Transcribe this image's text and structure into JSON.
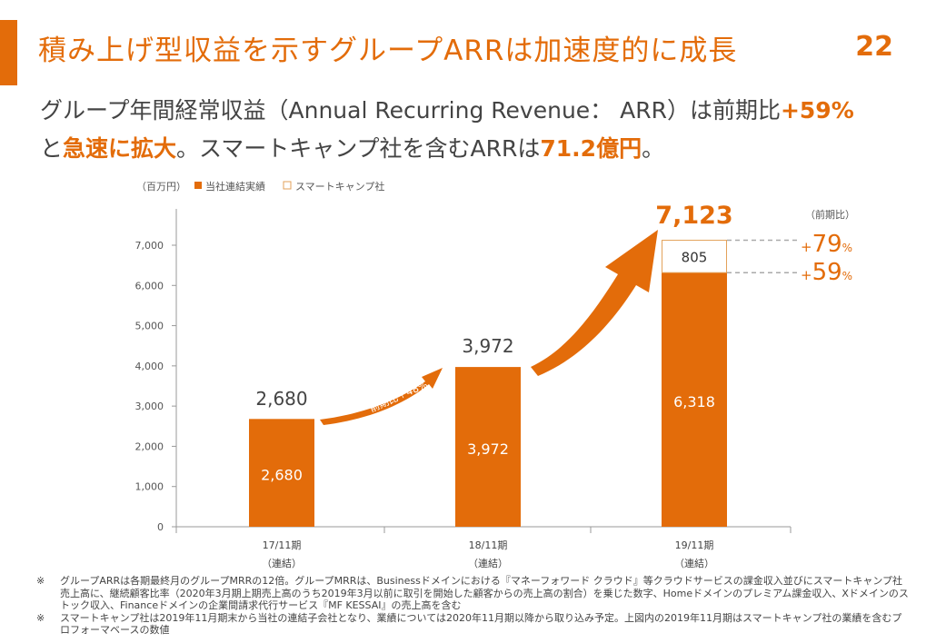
{
  "slide": {
    "title": "積み上げ型収益を示すグループARRは加速度的に成長",
    "page_number": "22",
    "subtitle_line1_a": "グループ年間経常収益（Annual Recurring Revenue： ARR）は前期比",
    "subtitle_line1_b": "+59%",
    "subtitle_line2_a": "と",
    "subtitle_line2_b": "急速に拡大",
    "subtitle_line2_c": "。スマートキャンプ社を含むARRは",
    "subtitle_line2_d": "71.2億円",
    "subtitle_line2_e": "。"
  },
  "colors": {
    "accent": "#e36c0a",
    "stack_border": "#e3a25a",
    "dashed": "#aaaaaa"
  },
  "chart_data": {
    "type": "bar",
    "unit_label": "（百万円）",
    "legend": [
      {
        "name": "当社連結実績",
        "style": "filled"
      },
      {
        "name": "スマートキャンプ社",
        "style": "outline"
      }
    ],
    "categories": [
      "17/11期",
      "18/11期",
      "19/11期"
    ],
    "category_sublabels": [
      "（連結）",
      "（連結）",
      "（連結）"
    ],
    "series": [
      {
        "name": "当社連結実績",
        "values": [
          2680,
          3972,
          6318
        ]
      },
      {
        "name": "スマートキャンプ社",
        "values": [
          0,
          0,
          805
        ]
      }
    ],
    "totals": [
      "2,680",
      "3,972",
      "7,123"
    ],
    "bar_labels": [
      "2,680",
      "3,972",
      "6,318"
    ],
    "stack_label": "805",
    "ylim": [
      0,
      7500
    ],
    "yticks": [
      0,
      1000,
      2000,
      3000,
      4000,
      5000,
      6000,
      7000
    ],
    "ytick_labels": [
      "0",
      "1,000",
      "2,000",
      "3,000",
      "4,000",
      "5,000",
      "6,000",
      "7,000"
    ],
    "growth_arrow_label": "前期比＋48%",
    "yoy_header": "（前期比）",
    "yoy": [
      {
        "level": 7123,
        "prefix": "+",
        "value": "79",
        "suffix": "%"
      },
      {
        "level": 6318,
        "prefix": "+",
        "value": "59",
        "suffix": "%"
      }
    ]
  },
  "notes": [
    {
      "mark": "※",
      "text": "グループARRは各期最終月のグループMRRの12倍。グループMRRは、Businessドメインにおける『マネーフォワード クラウド』等クラウドサービスの課金収入並びにスマートキャンプ社売上高に、継続顧客比率（2020年3月期上期売上高のうち2019年3月以前に取引を開始した顧客からの売上高の割合）を乗じた数字、Homeドメインのプレミアム課金収入、Xドメインのストック収入、Financeドメインの企業間請求代行サービス『MF KESSAI』の売上高を含む"
    },
    {
      "mark": "※",
      "text": "スマートキャンプ社は2019年11月期末から当社の連結子会社となり、業績については2020年11月期以降から取り込み予定。上図内の2019年11月期はスマートキャンプ社の業績を含むプロフォーマベースの数値"
    }
  ]
}
